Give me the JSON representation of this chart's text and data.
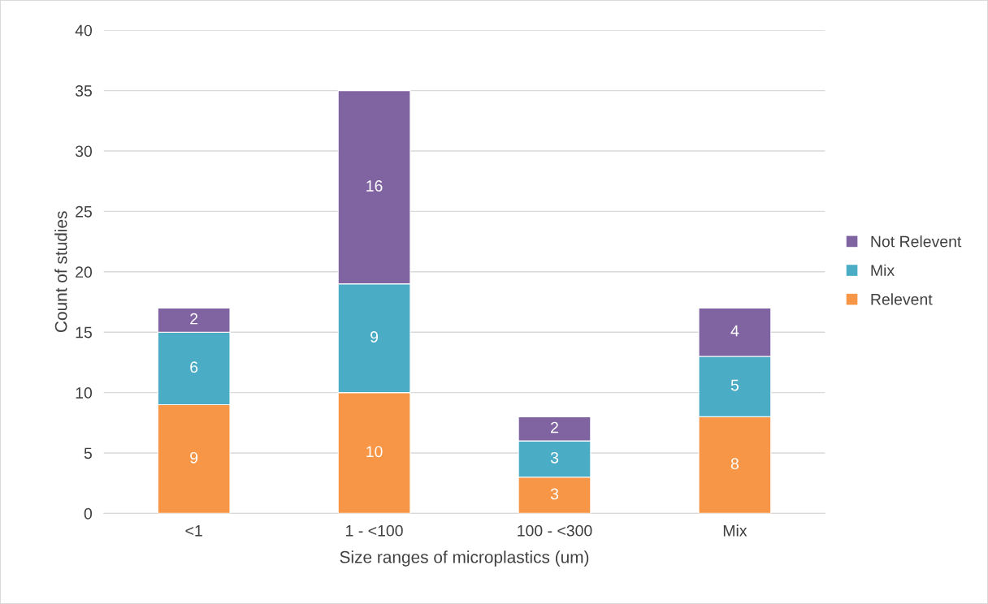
{
  "chart_data": {
    "type": "bar",
    "stacked": true,
    "xlabel": "Size ranges of microplastics (um)",
    "ylabel": "Count of studies",
    "categories": [
      "<1",
      "1 - <100",
      "100 - <300",
      "Mix"
    ],
    "series": [
      {
        "name": "Relevent",
        "color": "#f79646",
        "values": [
          9,
          10,
          3,
          8
        ]
      },
      {
        "name": "Mix",
        "color": "#4bacc6",
        "values": [
          6,
          9,
          3,
          5
        ]
      },
      {
        "name": "Not Relevent",
        "color": "#8064a2",
        "values": [
          2,
          16,
          2,
          4
        ]
      }
    ],
    "ylim": [
      0,
      40
    ],
    "yticks": [
      0,
      5,
      10,
      15,
      20,
      25,
      30,
      35,
      40
    ],
    "grid": "y",
    "legend": "right",
    "data_labels": true
  }
}
